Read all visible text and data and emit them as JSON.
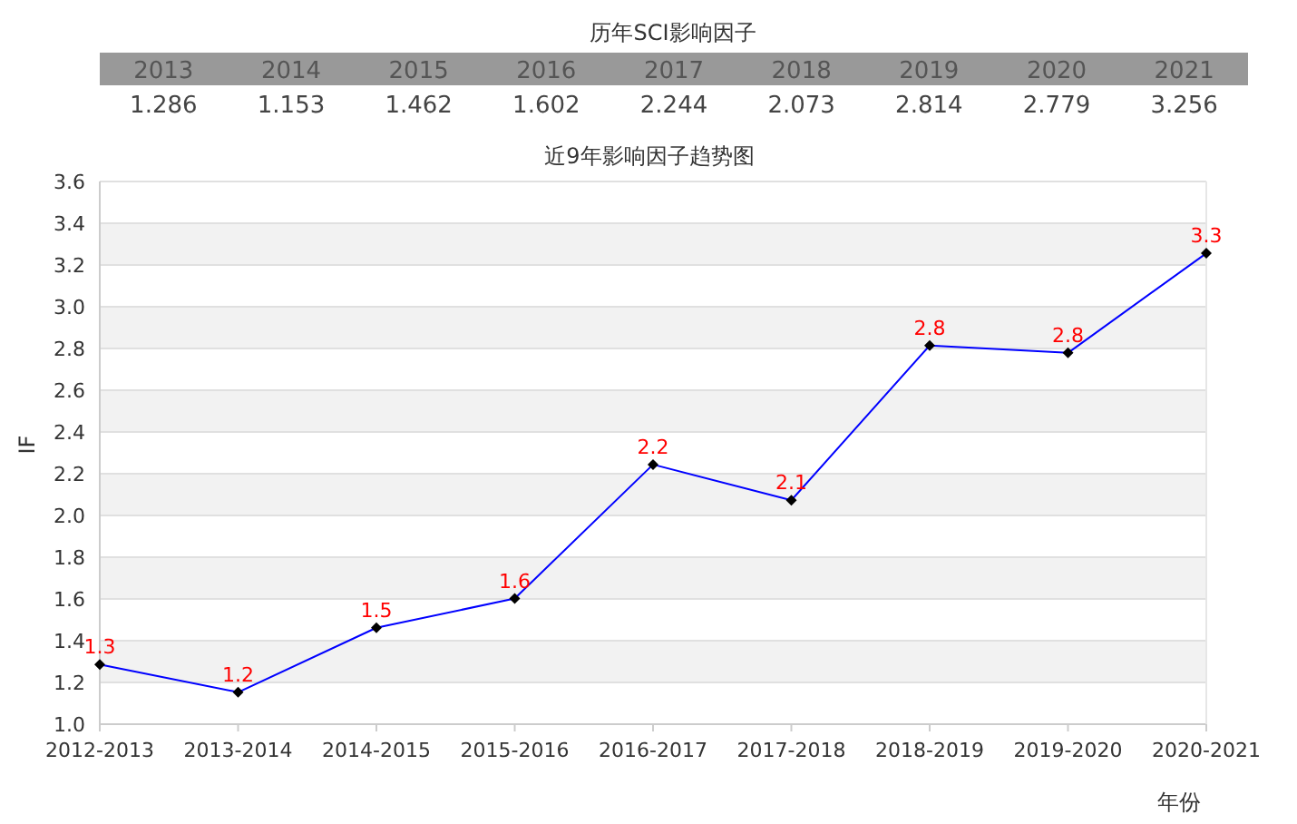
{
  "chart_data": [
    {
      "type": "heatmap",
      "title": "历年SCI影响因子",
      "categories": [
        "2013",
        "2014",
        "2015",
        "2016",
        "2017",
        "2018",
        "2019",
        "2020",
        "2021"
      ],
      "y_categories": [
        null
      ],
      "cells": [
        [
          1.286,
          1.153,
          1.462,
          1.602,
          2.244,
          2.073,
          2.814,
          2.779,
          3.256
        ]
      ],
      "data_labels": true
    },
    {
      "type": "line",
      "title": "近9年影响因子趋势图",
      "xlabel": "年份",
      "ylabel": "IF",
      "categories": [
        "2012-2013",
        "2013-2014",
        "2014-2015",
        "2015-2016",
        "2016-2017",
        "2017-2018",
        "2018-2019",
        "2019-2020",
        "2020-2021"
      ],
      "values": [
        1.286,
        1.153,
        1.462,
        1.602,
        2.244,
        2.073,
        2.814,
        2.779,
        3.256
      ],
      "value_labels": [
        "1.3",
        "1.2",
        "1.5",
        "1.6",
        "2.2",
        "2.1",
        "2.8",
        "2.8",
        "3.3"
      ],
      "color": "#0000ff",
      "marker": "diamond",
      "grid": "y",
      "ylim": [
        1.0,
        3.6
      ],
      "yticks": [
        {
          "value": 1.0,
          "label": "1.0"
        },
        {
          "value": 1.2,
          "label": "1.2"
        },
        {
          "value": 1.4,
          "label": "1.4"
        },
        {
          "value": 1.6,
          "label": "1.6"
        },
        {
          "value": 1.8,
          "label": "1.8"
        },
        {
          "value": 2.0,
          "label": "2.0"
        },
        {
          "value": 2.2,
          "label": "2.2"
        },
        {
          "value": 2.4,
          "label": "2.4"
        },
        {
          "value": 2.6,
          "label": "2.6"
        },
        {
          "value": 2.8,
          "label": "2.8"
        },
        {
          "value": 3.0,
          "label": "3.0"
        },
        {
          "value": 3.2,
          "label": "3.2"
        },
        {
          "value": 3.4,
          "label": "3.4"
        },
        {
          "value": 3.6,
          "label": "3.6"
        }
      ]
    }
  ]
}
